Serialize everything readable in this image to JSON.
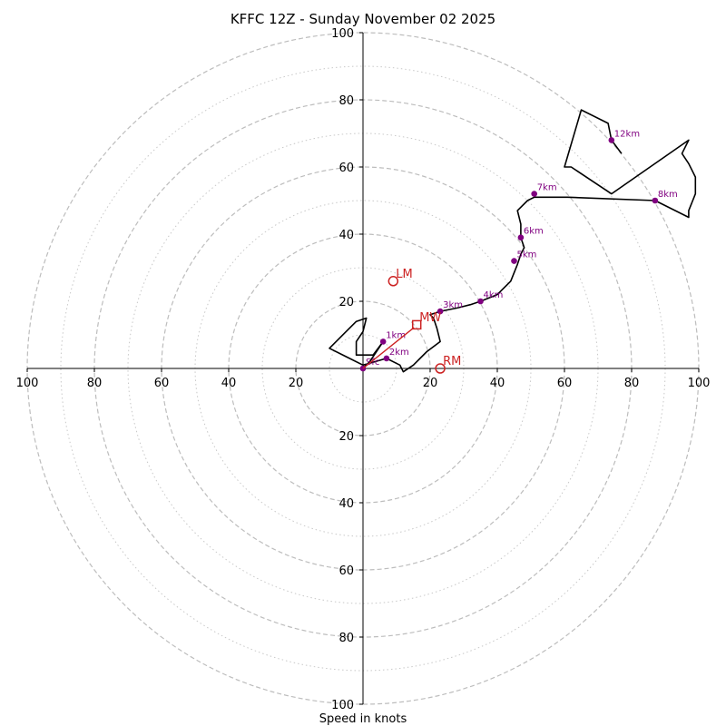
{
  "chart_data": {
    "type": "hodograph",
    "title": "KFFC 12Z - Sunday November 02 2025",
    "xlabel": "Speed in knots",
    "units": "knots",
    "max_speed": 100,
    "rings_dashed": [
      20,
      40,
      60,
      80,
      100
    ],
    "rings_dotted": [
      10,
      30,
      50,
      70,
      90
    ],
    "tick_values": [
      20,
      40,
      60,
      80,
      100
    ],
    "tick_labels": {
      "20": "20",
      "40": "40",
      "60": "60",
      "80": "80",
      "100": "100"
    },
    "colors": {
      "hodograph": "#000000",
      "height_markers": "#800080",
      "storm_motion": "#cc2222",
      "mean_wind": "#cc2222",
      "dashed_rings": "#bdbdbd",
      "dotted_rings": "#c8c8c8"
    },
    "hodograph": [
      {
        "u": 0,
        "v": 0
      },
      {
        "u": 2,
        "v": 2
      },
      {
        "u": 4,
        "v": 5
      },
      {
        "u": 6,
        "v": 8
      },
      {
        "u": 3,
        "v": 4
      },
      {
        "u": -2,
        "v": 4
      },
      {
        "u": -2,
        "v": 8
      },
      {
        "u": 0,
        "v": 11
      },
      {
        "u": 1,
        "v": 15
      },
      {
        "u": -2,
        "v": 14
      },
      {
        "u": -4,
        "v": 12
      },
      {
        "u": -10,
        "v": 6
      },
      {
        "u": 0,
        "v": 1
      },
      {
        "u": 7,
        "v": 3
      },
      {
        "u": 11,
        "v": 1
      },
      {
        "u": 12,
        "v": -1
      },
      {
        "u": 15,
        "v": 1
      },
      {
        "u": 19,
        "v": 5
      },
      {
        "u": 23,
        "v": 8
      },
      {
        "u": 22,
        "v": 12
      },
      {
        "u": 21,
        "v": 15
      },
      {
        "u": 20,
        "v": 16
      },
      {
        "u": 23,
        "v": 17
      },
      {
        "u": 28,
        "v": 18
      },
      {
        "u": 32,
        "v": 19
      },
      {
        "u": 35,
        "v": 20
      },
      {
        "u": 40,
        "v": 22
      },
      {
        "u": 44,
        "v": 26
      },
      {
        "u": 46,
        "v": 31
      },
      {
        "u": 47,
        "v": 34
      },
      {
        "u": 48,
        "v": 36
      },
      {
        "u": 47,
        "v": 39
      },
      {
        "u": 47,
        "v": 43
      },
      {
        "u": 46,
        "v": 47
      },
      {
        "u": 49,
        "v": 50
      },
      {
        "u": 51,
        "v": 51
      },
      {
        "u": 61,
        "v": 51
      },
      {
        "u": 87,
        "v": 50
      },
      {
        "u": 97,
        "v": 45
      },
      {
        "u": 97,
        "v": 47
      },
      {
        "u": 99,
        "v": 52
      },
      {
        "u": 99,
        "v": 57
      },
      {
        "u": 97,
        "v": 61
      },
      {
        "u": 95,
        "v": 64
      },
      {
        "u": 97,
        "v": 68
      },
      {
        "u": 74,
        "v": 52
      },
      {
        "u": 62,
        "v": 60
      },
      {
        "u": 60,
        "v": 60
      },
      {
        "u": 65,
        "v": 77
      },
      {
        "u": 73,
        "v": 73
      },
      {
        "u": 74,
        "v": 68
      },
      {
        "u": 77,
        "v": 64
      }
    ],
    "height_points": [
      {
        "label": "Sfc",
        "u": 0,
        "v": 0
      },
      {
        "label": "1km",
        "u": 6,
        "v": 8
      },
      {
        "label": "2km",
        "u": 7,
        "v": 3
      },
      {
        "label": "3km",
        "u": 23,
        "v": 17
      },
      {
        "label": "4km",
        "u": 35,
        "v": 20
      },
      {
        "label": "5km",
        "u": 45,
        "v": 32
      },
      {
        "label": "6km",
        "u": 47,
        "v": 39
      },
      {
        "label": "7km",
        "u": 51,
        "v": 52
      },
      {
        "label": "8km",
        "u": 87,
        "v": 50
      },
      {
        "label": "12km",
        "u": 74,
        "v": 68
      }
    ],
    "storm_motion": [
      {
        "label": "LM",
        "u": 9,
        "v": 26
      },
      {
        "label": "RM",
        "u": 23,
        "v": 0
      }
    ],
    "mean_wind": {
      "label": "MW",
      "u": 16,
      "v": 13
    }
  }
}
